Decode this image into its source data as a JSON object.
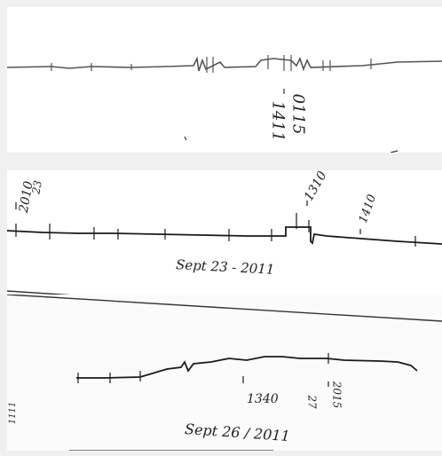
{
  "annotations": {
    "top_time_a": "1411",
    "top_time_b": "0115",
    "mid_start": "2010",
    "mid_start_sub": "23",
    "mid_time_a": "1310",
    "mid_time_b": "1410",
    "mid_date": "Sept 23 - 2011",
    "bot_start": "1111",
    "bot_time_a": "1340",
    "bot_time_b": "2015",
    "bot_time_b_sub": "27",
    "bot_date": "Sept 26 / 2011"
  },
  "colors": {
    "ink": "#1a1a1a",
    "trace_top": "#555555",
    "paper": "#ffffff",
    "background": "#f0f0f0"
  }
}
